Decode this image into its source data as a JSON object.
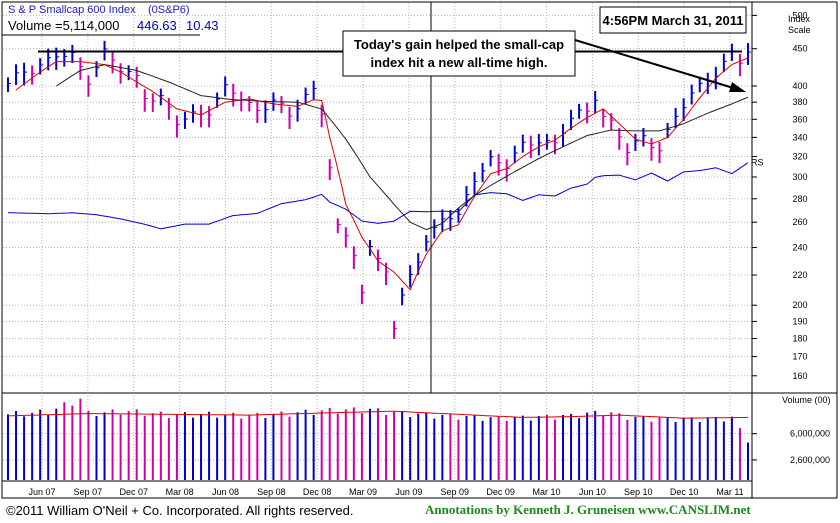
{
  "chart_data": {
    "type": "stock-chart",
    "header": {
      "index_name": "S & P Smallcap 600 Index",
      "symbol": "(0S&P6)",
      "volume_label": "Volume =5,114,000",
      "price": "446.63",
      "change": "10.43"
    },
    "timestamp": "4:56PM March 31, 2011",
    "annotation": {
      "line1": "Today's gain helped the small-cap",
      "line2": "index hit a new all-time high."
    },
    "price_axis": {
      "title_line1": "Index",
      "title_line2": "Scale",
      "scale": "log",
      "range": [
        152,
        520
      ],
      "ticks": [
        500,
        450,
        400,
        380,
        360,
        340,
        320,
        300,
        280,
        260,
        240,
        220,
        200,
        190,
        180,
        170,
        160
      ]
    },
    "volume_axis": {
      "title": "Volume (00)",
      "ticks": [
        {
          "value": 6000000,
          "label": "6,000,000"
        },
        {
          "value": 2600000,
          "label": "2,600,000"
        }
      ],
      "range": [
        0,
        11000000
      ]
    },
    "x_axis": {
      "labels": [
        "Jun 07",
        "Sep 07",
        "Dec 07",
        "Mar 08",
        "Jun 08",
        "Sep 08",
        "Dec 08",
        "Mar 09",
        "Jun 09",
        "Sep 09",
        "Dec 09",
        "Mar 10",
        "Jun 10",
        "Sep 10",
        "Dec 10",
        "Mar 11"
      ]
    },
    "resistance_level": 446,
    "rs_label": "RS",
    "price_series": {
      "name": "",
      "anchors": [
        [
          0,
          400
        ],
        [
          2,
          420
        ],
        [
          4,
          428
        ],
        [
          6,
          440
        ],
        [
          8,
          438
        ],
        [
          10,
          410
        ],
        [
          12,
          445
        ],
        [
          14,
          420
        ],
        [
          16,
          410
        ],
        [
          17,
          390
        ],
        [
          19,
          385
        ],
        [
          21,
          355
        ],
        [
          23,
          365
        ],
        [
          25,
          372
        ],
        [
          27,
          395
        ],
        [
          29,
          385
        ],
        [
          31,
          370
        ],
        [
          33,
          385
        ],
        [
          35,
          360
        ],
        [
          37,
          390
        ],
        [
          38,
          395
        ],
        [
          39,
          370
        ],
        [
          41,
          255
        ],
        [
          43,
          235
        ],
        [
          44,
          210
        ],
        [
          45,
          240
        ],
        [
          47,
          225
        ],
        [
          48,
          185
        ],
        [
          50,
          220
        ],
        [
          52,
          245
        ],
        [
          54,
          265
        ],
        [
          56,
          262
        ],
        [
          58,
          300
        ],
        [
          60,
          318
        ],
        [
          62,
          310
        ],
        [
          64,
          330
        ],
        [
          66,
          340
        ],
        [
          68,
          332
        ],
        [
          70,
          360
        ],
        [
          72,
          370
        ],
        [
          73,
          390
        ],
        [
          74,
          365
        ],
        [
          75,
          355
        ],
        [
          77,
          325
        ],
        [
          79,
          340
        ],
        [
          81,
          330
        ],
        [
          83,
          360
        ],
        [
          85,
          390
        ],
        [
          87,
          410
        ],
        [
          89,
          430
        ],
        [
          90,
          440
        ],
        [
          91,
          430
        ],
        [
          92,
          447
        ]
      ]
    },
    "moving_averages": [
      {
        "name": "",
        "color": "#e00000",
        "anchors": [
          [
            1,
            395
          ],
          [
            4,
            418
          ],
          [
            6,
            432
          ],
          [
            9,
            432
          ],
          [
            12,
            428
          ],
          [
            14,
            418
          ],
          [
            16,
            405
          ],
          [
            18,
            393
          ],
          [
            21,
            372
          ],
          [
            24,
            365
          ],
          [
            27,
            380
          ],
          [
            30,
            384
          ],
          [
            33,
            378
          ],
          [
            36,
            375
          ],
          [
            38,
            383
          ],
          [
            39,
            382
          ],
          [
            40,
            340
          ],
          [
            42,
            275
          ],
          [
            44,
            248
          ],
          [
            46,
            230
          ],
          [
            48,
            222
          ],
          [
            50,
            210
          ],
          [
            52,
            235
          ],
          [
            54,
            253
          ],
          [
            56,
            258
          ],
          [
            58,
            282
          ],
          [
            60,
            303
          ],
          [
            62,
            308
          ],
          [
            64,
            320
          ],
          [
            66,
            330
          ],
          [
            68,
            337
          ],
          [
            70,
            350
          ],
          [
            72,
            362
          ],
          [
            74,
            372
          ],
          [
            76,
            355
          ],
          [
            78,
            338
          ],
          [
            80,
            333
          ],
          [
            82,
            340
          ],
          [
            84,
            360
          ],
          [
            86,
            385
          ],
          [
            88,
            410
          ],
          [
            90,
            428
          ],
          [
            92,
            437
          ]
        ]
      },
      {
        "name": "",
        "color": "#222222",
        "anchors": [
          [
            6,
            400
          ],
          [
            9,
            420
          ],
          [
            12,
            428
          ],
          [
            16,
            420
          ],
          [
            20,
            405
          ],
          [
            24,
            388
          ],
          [
            28,
            383
          ],
          [
            32,
            381
          ],
          [
            36,
            380
          ],
          [
            39,
            372
          ],
          [
            42,
            338
          ],
          [
            45,
            300
          ],
          [
            48,
            275
          ],
          [
            50,
            260
          ],
          [
            52,
            254
          ],
          [
            54,
            259
          ],
          [
            56,
            272
          ],
          [
            58,
            283
          ],
          [
            60,
            292
          ],
          [
            63,
            305
          ],
          [
            66,
            318
          ],
          [
            69,
            330
          ],
          [
            72,
            342
          ],
          [
            75,
            348
          ],
          [
            78,
            347
          ],
          [
            81,
            347
          ],
          [
            84,
            355
          ],
          [
            87,
            367
          ],
          [
            90,
            378
          ],
          [
            92,
            386
          ]
        ]
      }
    ],
    "rs_series": {
      "name": "",
      "color": "#0000dd",
      "anchors": [
        [
          0,
          268
        ],
        [
          5,
          267
        ],
        [
          8,
          268
        ],
        [
          11,
          266
        ],
        [
          14,
          263
        ],
        [
          17,
          258
        ],
        [
          19,
          255
        ],
        [
          22,
          258
        ],
        [
          25,
          259
        ],
        [
          28,
          265
        ],
        [
          31,
          268
        ],
        [
          34,
          275
        ],
        [
          37,
          280
        ],
        [
          39,
          283
        ],
        [
          40,
          278
        ],
        [
          42,
          270
        ],
        [
          44,
          262
        ],
        [
          46,
          258
        ],
        [
          48,
          262
        ],
        [
          50,
          268
        ],
        [
          52,
          270
        ],
        [
          54,
          268
        ],
        [
          56,
          270
        ],
        [
          58,
          282
        ],
        [
          60,
          287
        ],
        [
          62,
          283
        ],
        [
          64,
          280
        ],
        [
          66,
          282
        ],
        [
          68,
          284
        ],
        [
          70,
          288
        ],
        [
          72,
          295
        ],
        [
          73,
          298
        ],
        [
          74,
          303
        ],
        [
          76,
          300
        ],
        [
          78,
          299
        ],
        [
          80,
          302
        ],
        [
          82,
          298
        ],
        [
          84,
          303
        ],
        [
          86,
          308
        ],
        [
          88,
          307
        ],
        [
          90,
          305
        ],
        [
          92,
          312
        ]
      ]
    },
    "volume_series": {
      "name": "",
      "anchors": [
        [
          0,
          8.5
        ],
        [
          5,
          8.8
        ],
        [
          9,
          10.5
        ],
        [
          10,
          8.6
        ],
        [
          15,
          8.9
        ],
        [
          20,
          8.4
        ],
        [
          25,
          8.5
        ],
        [
          30,
          8.3
        ],
        [
          35,
          8.6
        ],
        [
          40,
          9.0
        ],
        [
          45,
          9.1
        ],
        [
          48,
          8.7
        ],
        [
          52,
          8.4
        ],
        [
          56,
          8.2
        ],
        [
          60,
          8.0
        ],
        [
          65,
          8.1
        ],
        [
          70,
          8.3
        ],
        [
          74,
          8.8
        ],
        [
          78,
          8.0
        ],
        [
          82,
          7.9
        ],
        [
          86,
          7.9
        ],
        [
          90,
          8.0
        ],
        [
          92,
          5.1
        ]
      ],
      "unit": "millions"
    },
    "volume_average": [
      [
        0,
        8.3
      ],
      [
        10,
        8.6
      ],
      [
        20,
        8.5
      ],
      [
        30,
        8.4
      ],
      [
        40,
        8.7
      ],
      [
        48,
        8.9
      ],
      [
        56,
        8.5
      ],
      [
        64,
        8.1
      ],
      [
        70,
        8.2
      ],
      [
        76,
        8.4
      ],
      [
        84,
        8.0
      ],
      [
        92,
        8.1
      ]
    ]
  },
  "footer": {
    "copyright": "©2011 William O'Neil + Co. Incorporated. All rights reserved.",
    "annotations_credit": "Annotations by Kenneth J. Gruneisen  www.CANSLIM.net"
  }
}
